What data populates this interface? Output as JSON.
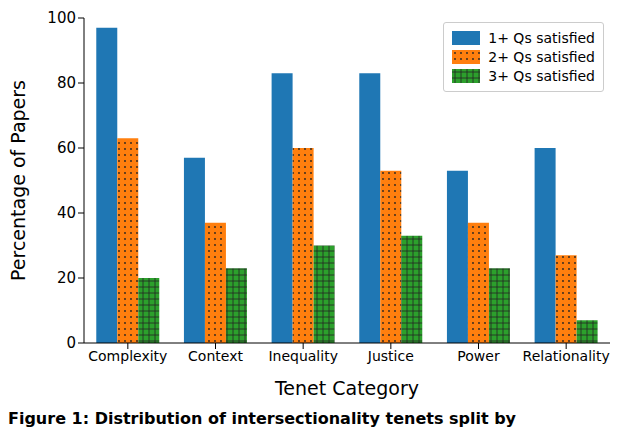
{
  "chart_data": {
    "type": "bar",
    "title": "Figure 1: Distribution of intersectionality tenets split by",
    "x_label": "Tenet Category",
    "y_label": "Percentage of Papers",
    "categories": [
      "Complexity",
      "Context",
      "Inequality",
      "Justice",
      "Power",
      "Relationality"
    ],
    "series": [
      {
        "name": "1+ Qs satisfied",
        "color": "#1f77b4",
        "values": [
          97,
          57,
          83,
          83,
          53,
          60
        ]
      },
      {
        "name": "2+ Qs satisfied",
        "color": "#ff7f0e",
        "values": [
          63,
          37,
          60,
          53,
          37,
          27
        ]
      },
      {
        "name": "3+ Qs satisfied",
        "color": "#2ca02c",
        "values": [
          20,
          23,
          30,
          33,
          23,
          7
        ]
      }
    ],
    "ylim": [
      0,
      100
    ],
    "yticks": [
      0,
      20,
      40,
      60,
      80,
      100
    ],
    "legend": "upper right",
    "grid": false
  }
}
